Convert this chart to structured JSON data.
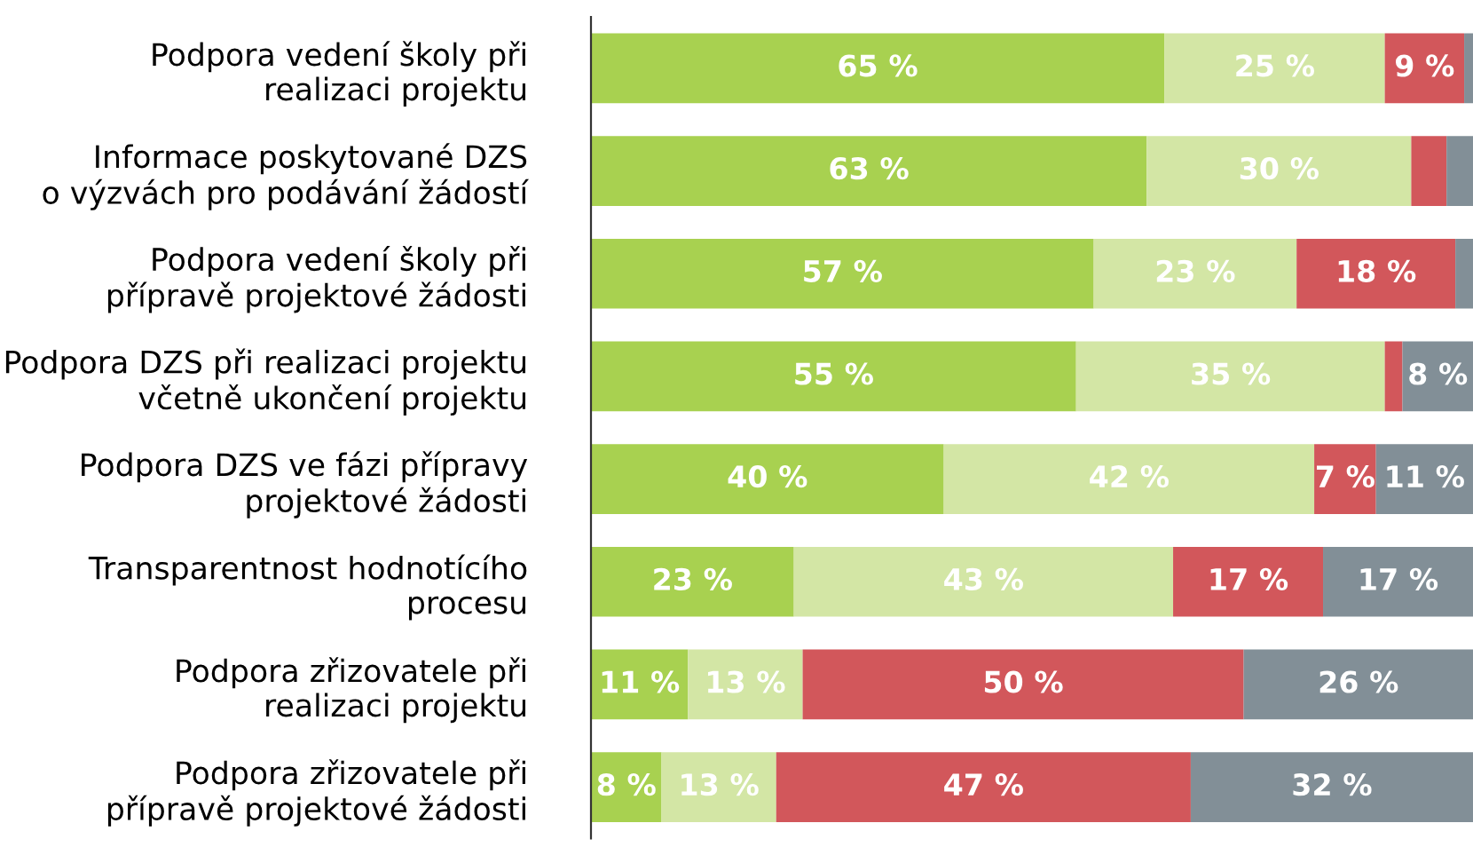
{
  "chart_data": {
    "type": "bar",
    "orientation": "horizontal",
    "stacked": true,
    "xlim": [
      0,
      100
    ],
    "tick_labels": "y",
    "grid": false,
    "legend": false,
    "categories": [
      "Podpora vedení školy při\nrealizaci projektu",
      "Informace poskytované DZS\no výzvách pro podávání žádostí",
      "Podpora vedení školy při\npřípravě projektové žádosti",
      "Podpora DZS při realizaci projektu\nvčetně ukončení projektu",
      "Podpora DZS ve fázi přípravy\nprojektové žádosti",
      "Transparentnost hodnotícího\nprocesu",
      "Podpora zřizovatele při\nrealizaci projektu",
      "Podpora zřizovatele při\npřípravě projektové žádosti"
    ],
    "series": [
      {
        "color": "#a8d150",
        "values": [
          65,
          63,
          57,
          55,
          40,
          23,
          11,
          8
        ],
        "value_labels": [
          "65 %",
          "63 %",
          "57 %",
          "55 %",
          "40 %",
          "23 %",
          "11 %",
          "8 %"
        ]
      },
      {
        "color": "#d3e6a5",
        "values": [
          25,
          30,
          23,
          35,
          42,
          43,
          13,
          13
        ],
        "value_labels": [
          "25 %",
          "30 %",
          "23 %",
          "35 %",
          "42 %",
          "43 %",
          "13 %",
          "13 %"
        ]
      },
      {
        "color": "#d2575b",
        "values": [
          9,
          4,
          18,
          2,
          7,
          17,
          50,
          47
        ],
        "value_labels": [
          "9 %",
          null,
          "18 %",
          null,
          "7 %",
          "17 %",
          "50 %",
          "47 %"
        ]
      },
      {
        "color": "#828f97",
        "values": [
          1,
          3,
          2,
          8,
          11,
          17,
          26,
          32
        ],
        "value_labels": [
          null,
          null,
          null,
          "8 %",
          "11 %",
          "17 %",
          "26 %",
          "32 %"
        ]
      }
    ]
  }
}
